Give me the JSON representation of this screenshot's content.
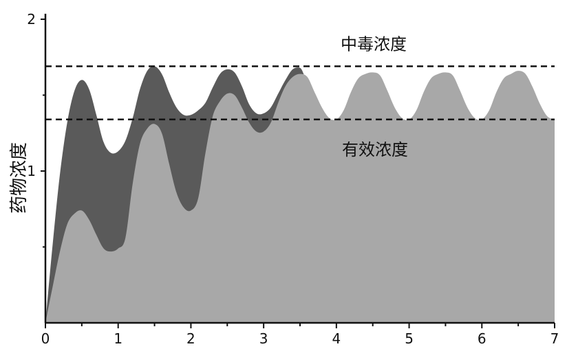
{
  "chart_data": {
    "type": "area",
    "ylabel": "药物浓度",
    "xlim": [
      0,
      7
    ],
    "ylim": [
      0,
      2
    ],
    "x_ticks": [
      "0",
      "1",
      "2",
      "3",
      "4",
      "5",
      "6",
      "7"
    ],
    "y_ticks": [
      "1",
      "2"
    ],
    "thresholds": [
      {
        "label": "中毒浓度",
        "value": 1.69
      },
      {
        "label": "有效浓度",
        "value": 1.34
      }
    ],
    "series": [
      {
        "fill": "#5a5a5a",
        "x": [
          0,
          0.1,
          0.2,
          0.3,
          0.4,
          0.5,
          0.6,
          0.7,
          0.8,
          0.9,
          1.0,
          1.1,
          1.2,
          1.3,
          1.4,
          1.5,
          1.6,
          1.7,
          1.8,
          1.9,
          2.0,
          2.1,
          2.2,
          2.3,
          2.4,
          2.5,
          2.6,
          2.7,
          2.8,
          2.9,
          3.0,
          3.1,
          3.2,
          3.3,
          3.4,
          3.5,
          3.55
        ],
        "values": [
          0,
          0.52,
          0.98,
          1.32,
          1.53,
          1.6,
          1.54,
          1.37,
          1.19,
          1.12,
          1.13,
          1.2,
          1.35,
          1.54,
          1.66,
          1.69,
          1.64,
          1.52,
          1.42,
          1.37,
          1.37,
          1.4,
          1.45,
          1.55,
          1.64,
          1.67,
          1.65,
          1.56,
          1.44,
          1.38,
          1.38,
          1.42,
          1.51,
          1.6,
          1.67,
          1.68,
          1.64
        ]
      },
      {
        "fill": "#a8a8a8",
        "x": [
          0,
          0.1,
          0.2,
          0.3,
          0.4,
          0.5,
          0.6,
          0.7,
          0.8,
          0.9,
          1.0,
          1.1,
          1.2,
          1.3,
          1.4,
          1.5,
          1.6,
          1.7,
          1.8,
          1.9,
          2.0,
          2.1,
          2.2,
          2.3,
          2.4,
          2.5,
          2.6,
          2.7,
          2.8,
          2.9,
          3.0,
          3.1,
          3.2,
          3.3,
          3.4,
          3.5,
          3.6,
          3.7,
          3.8,
          3.9,
          4.0,
          4.1,
          4.2,
          4.3,
          4.4,
          4.5,
          4.6,
          4.7,
          4.8,
          4.9,
          5.0,
          5.1,
          5.2,
          5.3,
          5.4,
          5.5,
          5.6,
          5.7,
          5.8,
          5.9,
          6.0,
          6.1,
          6.2,
          6.3,
          6.4,
          6.5,
          6.6,
          6.7,
          6.8,
          6.9,
          7.0
        ],
        "values": [
          0,
          0.24,
          0.47,
          0.65,
          0.72,
          0.74,
          0.68,
          0.58,
          0.49,
          0.47,
          0.49,
          0.56,
          0.92,
          1.18,
          1.28,
          1.31,
          1.25,
          1.05,
          0.86,
          0.76,
          0.74,
          0.82,
          1.12,
          1.36,
          1.46,
          1.51,
          1.5,
          1.42,
          1.32,
          1.26,
          1.26,
          1.32,
          1.45,
          1.56,
          1.62,
          1.64,
          1.62,
          1.52,
          1.42,
          1.35,
          1.34,
          1.4,
          1.52,
          1.61,
          1.64,
          1.65,
          1.63,
          1.53,
          1.42,
          1.35,
          1.34,
          1.4,
          1.52,
          1.61,
          1.64,
          1.65,
          1.63,
          1.53,
          1.42,
          1.35,
          1.34,
          1.4,
          1.52,
          1.61,
          1.64,
          1.66,
          1.64,
          1.55,
          1.44,
          1.36,
          1.34
        ]
      }
    ],
    "grid": false
  }
}
